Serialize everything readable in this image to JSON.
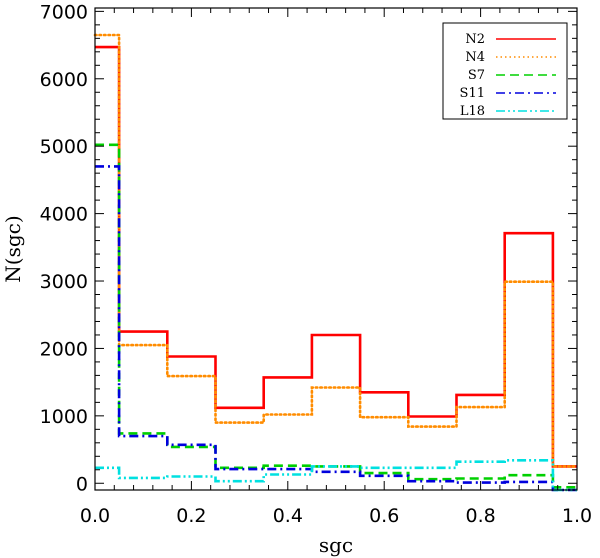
{
  "chart_data": {
    "type": "line",
    "title": "",
    "xlabel": "sgc",
    "ylabel": "N(sgc)",
    "xlim": [
      0.0,
      1.0
    ],
    "ylim": [
      -100,
      7050
    ],
    "x_ticks": [
      0.0,
      0.2,
      0.4,
      0.6,
      0.8,
      1.0
    ],
    "x_tick_labels": [
      "0.0",
      "0.2",
      "0.4",
      "0.6",
      "0.8",
      "1.0"
    ],
    "y_ticks": [
      0,
      1000,
      2000,
      3000,
      4000,
      5000,
      6000,
      7000
    ],
    "y_tick_labels": [
      "0",
      "1000",
      "2000",
      "3000",
      "4000",
      "5000",
      "6000",
      "7000"
    ],
    "grid": false,
    "legend_position": "top-right",
    "bin_edges": [
      0.0,
      0.05,
      0.15,
      0.25,
      0.35,
      0.45,
      0.55,
      0.65,
      0.75,
      0.85,
      0.95,
      1.0
    ],
    "series": [
      {
        "name": "N2",
        "color": "#ff0000",
        "style": "solid",
        "values": [
          6470,
          2250,
          1880,
          1120,
          1570,
          2200,
          1350,
          990,
          1310,
          3710,
          250
        ]
      },
      {
        "name": "N4",
        "color": "#ff8c00",
        "style": "dotted",
        "values": [
          6650,
          2050,
          1590,
          900,
          1020,
          1420,
          980,
          840,
          1130,
          2990,
          250
        ]
      },
      {
        "name": "S7",
        "color": "#00d000",
        "style": "dashed",
        "values": [
          5020,
          740,
          540,
          230,
          260,
          250,
          150,
          60,
          70,
          120,
          -60
        ]
      },
      {
        "name": "S11",
        "color": "#0000dd",
        "style": "dashdot",
        "values": [
          4700,
          700,
          570,
          210,
          210,
          170,
          110,
          30,
          10,
          20,
          -100
        ]
      },
      {
        "name": "L18",
        "color": "#00e0e0",
        "style": "dashdotdot",
        "values": [
          230,
          80,
          100,
          30,
          130,
          250,
          230,
          230,
          320,
          340,
          -100
        ]
      }
    ]
  }
}
